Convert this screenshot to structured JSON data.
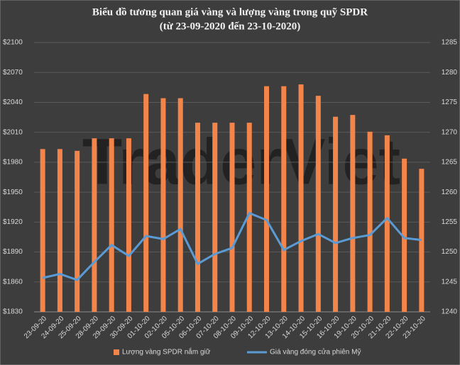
{
  "chart_data": {
    "type": "bar-line",
    "title": "Biểu đồ tương quan giá vàng và lượng vàng trong quỹ SPDR",
    "subtitle": "(từ 23-09-2020 đến 23-10-2020)",
    "watermark": "TraderViet",
    "categories": [
      "23-09-20",
      "24-09-20",
      "25-09-20",
      "28-09-20",
      "29-09-20",
      "30-09-20",
      "01-10-20",
      "02-10-20",
      "05-10-20",
      "06-10-20",
      "07-10-20",
      "08-10-20",
      "09-10-20",
      "12-10-20",
      "13-10-20",
      "14-10-20",
      "15-10-20",
      "16-10-20",
      "19-10-20",
      "20-10-20",
      "21-10-20",
      "22-10-20",
      "23-10-20"
    ],
    "series": [
      {
        "name": "Lượng vàng SPDR nắm giữ",
        "color": "#f4854a",
        "kind": "bar",
        "axis": "y2",
        "values": [
          1267.2,
          1267.2,
          1266.9,
          1269.0,
          1269.0,
          1269.0,
          1276.4,
          1275.7,
          1275.7,
          1271.6,
          1271.6,
          1271.6,
          1271.6,
          1277.7,
          1277.7,
          1278.0,
          1276.1,
          1272.6,
          1272.9,
          1270.1,
          1269.5,
          1265.6,
          1263.9
        ]
      },
      {
        "name": "Giá vàng đóng cửa phiên Mỹ",
        "color": "#5b9bd5",
        "kind": "line",
        "axis": "y",
        "values": [
          1864,
          1868,
          1862,
          1880,
          1897,
          1886,
          1906,
          1903,
          1913,
          1878,
          1888,
          1894,
          1929,
          1922,
          1892,
          1901,
          1908,
          1899,
          1904,
          1907,
          1924,
          1904,
          1902
        ]
      }
    ],
    "ylim": [
      1830,
      2100
    ],
    "yticks": [
      {
        "value": 1830,
        "label": "$1830"
      },
      {
        "value": 1860,
        "label": "$1860"
      },
      {
        "value": 1890,
        "label": "$1890"
      },
      {
        "value": 1920,
        "label": "$1920"
      },
      {
        "value": 1950,
        "label": "$1950"
      },
      {
        "value": 1980,
        "label": "$1980"
      },
      {
        "value": 2010,
        "label": "$2010"
      },
      {
        "value": 2040,
        "label": "$2040"
      },
      {
        "value": 2070,
        "label": "$2070"
      },
      {
        "value": 2100,
        "label": "$2100"
      }
    ],
    "y2lim": [
      1240,
      1285
    ],
    "y2ticks": [
      1240,
      1245,
      1250,
      1255,
      1260,
      1265,
      1270,
      1275,
      1280,
      1285
    ],
    "legend": "bottom"
  }
}
